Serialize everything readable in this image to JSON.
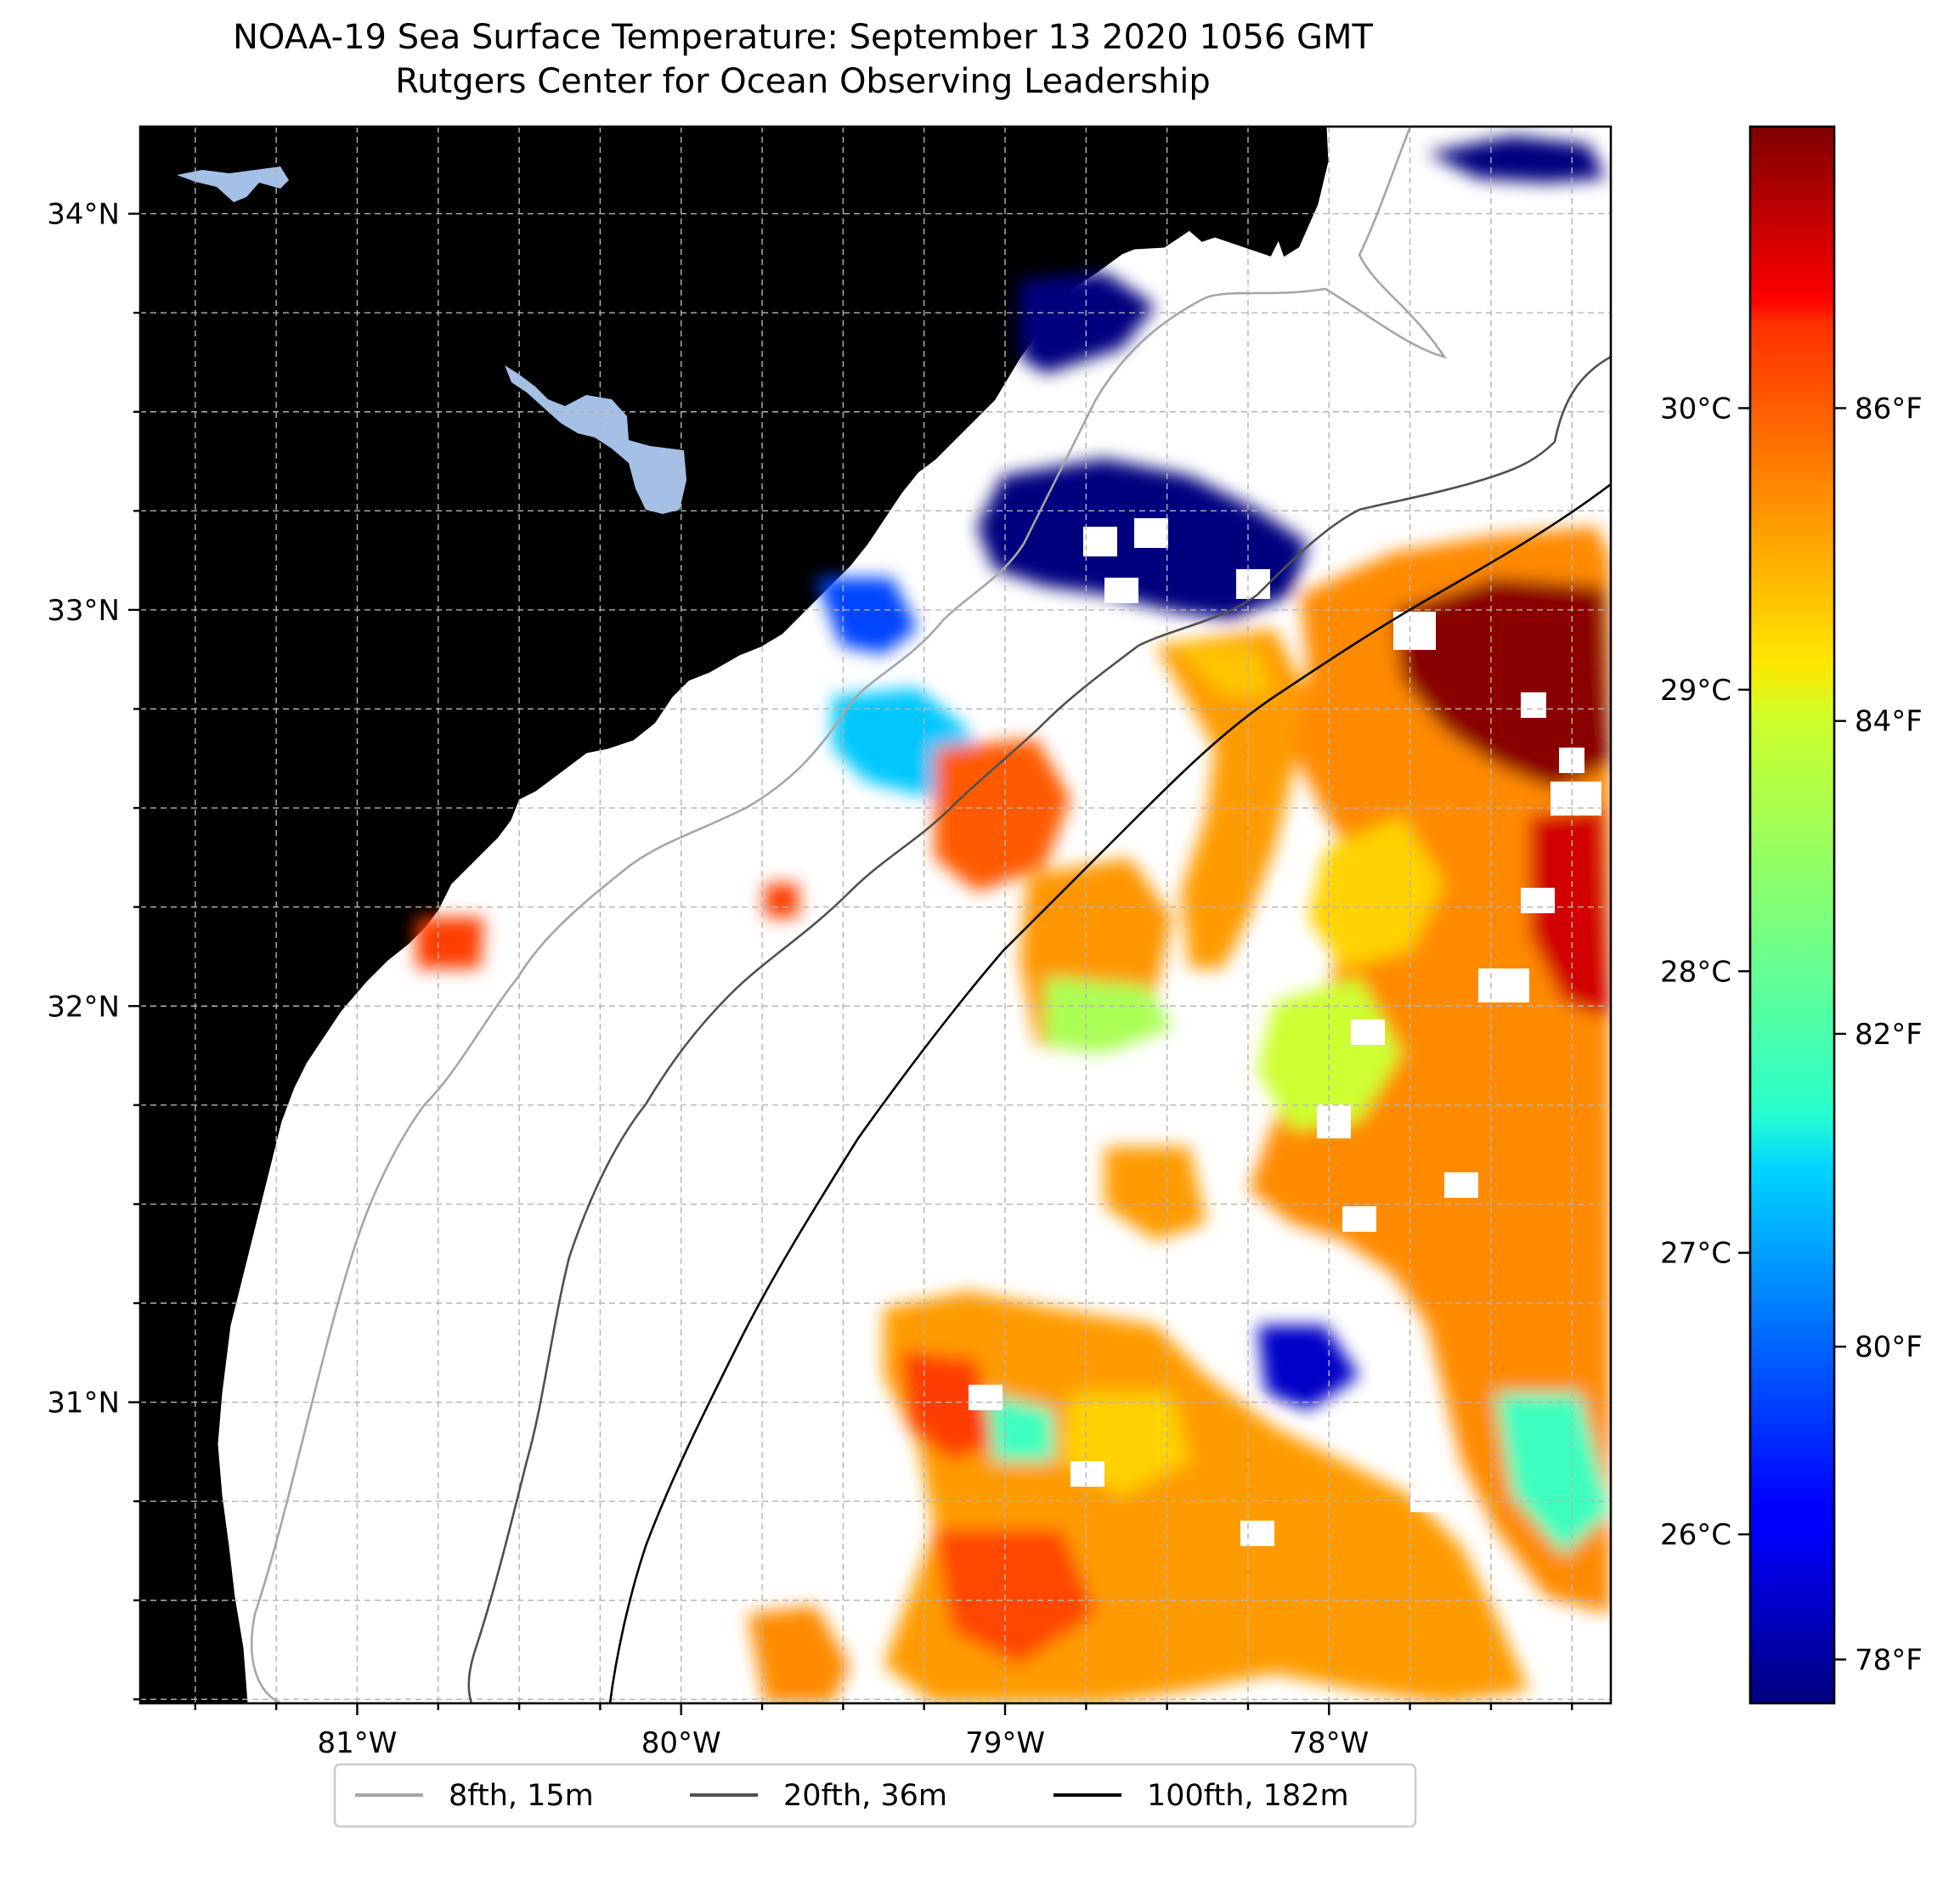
{
  "title": {
    "line1": "NOAA-19 Sea Surface Temperature: September 13 2020 1056 GMT",
    "line2": "Rutgers Center for Ocean Observing Leadership"
  },
  "map": {
    "lon_range": [
      -81.67,
      -77.13
    ],
    "lat_range": [
      30.24,
      34.22
    ],
    "land_color": "#cfb08a",
    "water_body_color": "#a5c0e6",
    "lat_ticks": [
      {
        "value": 34,
        "label": "34°N"
      },
      {
        "value": 33,
        "label": "33°N"
      },
      {
        "value": 32,
        "label": "32°N"
      },
      {
        "value": 31,
        "label": "31°N"
      }
    ],
    "lon_ticks": [
      {
        "value": -81,
        "label": "81°W"
      },
      {
        "value": -80,
        "label": "80°W"
      },
      {
        "value": -79,
        "label": "79°W"
      },
      {
        "value": -78,
        "label": "78°W"
      }
    ],
    "grid": true
  },
  "colorbar": {
    "colormap": "jet",
    "celsius_ticks": [
      {
        "value": 30,
        "label": "30°C"
      },
      {
        "value": 29,
        "label": "29°C"
      },
      {
        "value": 28,
        "label": "28°C"
      },
      {
        "value": 27,
        "label": "27°C"
      },
      {
        "value": 26,
        "label": "26°C"
      }
    ],
    "fahrenheit_ticks": [
      {
        "value": 86,
        "label": "86°F"
      },
      {
        "value": 84,
        "label": "84°F"
      },
      {
        "value": 82,
        "label": "82°F"
      },
      {
        "value": 80,
        "label": "80°F"
      },
      {
        "value": 78,
        "label": "78°F"
      }
    ]
  },
  "legend": {
    "placement": "bottom-center",
    "items": [
      {
        "label": "8fth, 15m",
        "color": "#a6a6a6"
      },
      {
        "label": "20fth, 36m",
        "color": "#505050"
      },
      {
        "label": "100fth, 182m",
        "color": "#000000"
      }
    ]
  }
}
